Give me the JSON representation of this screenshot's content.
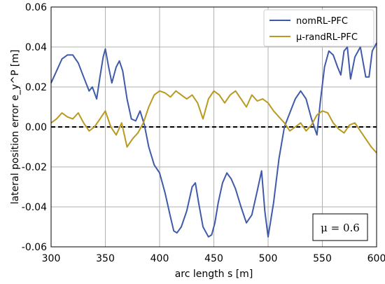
{
  "chart_data": {
    "type": "line",
    "xlabel": "arc length s [m]",
    "ylabel": "lateral position error e_y^P [m]",
    "xlim": [
      300,
      600
    ],
    "ylim": [
      -0.06,
      0.06
    ],
    "xticks": [
      "300",
      "350",
      "400",
      "450",
      "500",
      "550",
      "600"
    ],
    "yticks": [
      "0.06",
      "0.04",
      "0.02",
      "0.00",
      "-0.02",
      "-0.04",
      "-0.06"
    ],
    "grid": true,
    "legend_position": "top-right",
    "reference_line": {
      "y": 0.0,
      "style": "dashed",
      "color": "#000000"
    },
    "annotation": "μ = 0.6",
    "series": [
      {
        "name": "nomRL-PFC",
        "color": "#3f5aa8",
        "x": [
          300,
          305,
          310,
          315,
          320,
          325,
          330,
          335,
          338,
          342,
          345,
          348,
          350,
          353,
          356,
          360,
          363,
          366,
          370,
          374,
          378,
          382,
          386,
          390,
          395,
          400,
          405,
          410,
          413,
          416,
          420,
          425,
          430,
          433,
          436,
          440,
          445,
          448,
          451,
          454,
          458,
          462,
          466,
          470,
          475,
          480,
          485,
          490,
          494,
          497,
          500,
          505,
          510,
          515,
          520,
          525,
          530,
          535,
          540,
          545,
          548,
          552,
          556,
          560,
          564,
          567,
          570,
          573,
          576,
          580,
          585,
          590,
          593,
          596,
          600
        ],
        "y": [
          0.022,
          0.028,
          0.034,
          0.036,
          0.036,
          0.032,
          0.025,
          0.018,
          0.02,
          0.014,
          0.025,
          0.035,
          0.039,
          0.03,
          0.022,
          0.03,
          0.033,
          0.028,
          0.014,
          0.004,
          0.003,
          0.008,
          0.001,
          -0.01,
          -0.019,
          -0.023,
          -0.033,
          -0.045,
          -0.052,
          -0.053,
          -0.05,
          -0.042,
          -0.03,
          -0.028,
          -0.038,
          -0.05,
          -0.055,
          -0.054,
          -0.048,
          -0.038,
          -0.028,
          -0.023,
          -0.026,
          -0.031,
          -0.04,
          -0.048,
          -0.044,
          -0.032,
          -0.022,
          -0.042,
          -0.055,
          -0.038,
          -0.016,
          0.0,
          0.007,
          0.014,
          0.018,
          0.014,
          0.004,
          -0.004,
          0.012,
          0.03,
          0.038,
          0.036,
          0.03,
          0.026,
          0.038,
          0.04,
          0.024,
          0.035,
          0.04,
          0.025,
          0.025,
          0.038,
          0.042
        ]
      },
      {
        "name": "μ-randRL-PFC",
        "color": "#b99a1f",
        "x": [
          300,
          305,
          310,
          315,
          320,
          325,
          330,
          335,
          340,
          345,
          350,
          355,
          360,
          365,
          370,
          375,
          380,
          385,
          390,
          395,
          400,
          405,
          410,
          415,
          420,
          425,
          430,
          435,
          440,
          445,
          450,
          455,
          460,
          465,
          470,
          475,
          480,
          485,
          490,
          495,
          500,
          505,
          510,
          515,
          520,
          525,
          530,
          535,
          540,
          545,
          550,
          555,
          560,
          565,
          570,
          575,
          580,
          585,
          590,
          595,
          600
        ],
        "y": [
          0.002,
          0.004,
          0.007,
          0.005,
          0.004,
          0.007,
          0.002,
          -0.002,
          0.0,
          0.004,
          0.008,
          0.0,
          -0.004,
          0.002,
          -0.01,
          -0.006,
          -0.003,
          0.002,
          0.01,
          0.016,
          0.018,
          0.017,
          0.015,
          0.018,
          0.016,
          0.014,
          0.016,
          0.012,
          0.004,
          0.014,
          0.018,
          0.016,
          0.012,
          0.016,
          0.018,
          0.014,
          0.01,
          0.016,
          0.013,
          0.014,
          0.012,
          0.008,
          0.005,
          0.002,
          -0.002,
          0.0,
          0.002,
          -0.002,
          0.001,
          0.006,
          0.008,
          0.007,
          0.002,
          -0.001,
          -0.003,
          0.001,
          0.002,
          -0.002,
          -0.006,
          -0.01,
          -0.013
        ]
      }
    ]
  }
}
